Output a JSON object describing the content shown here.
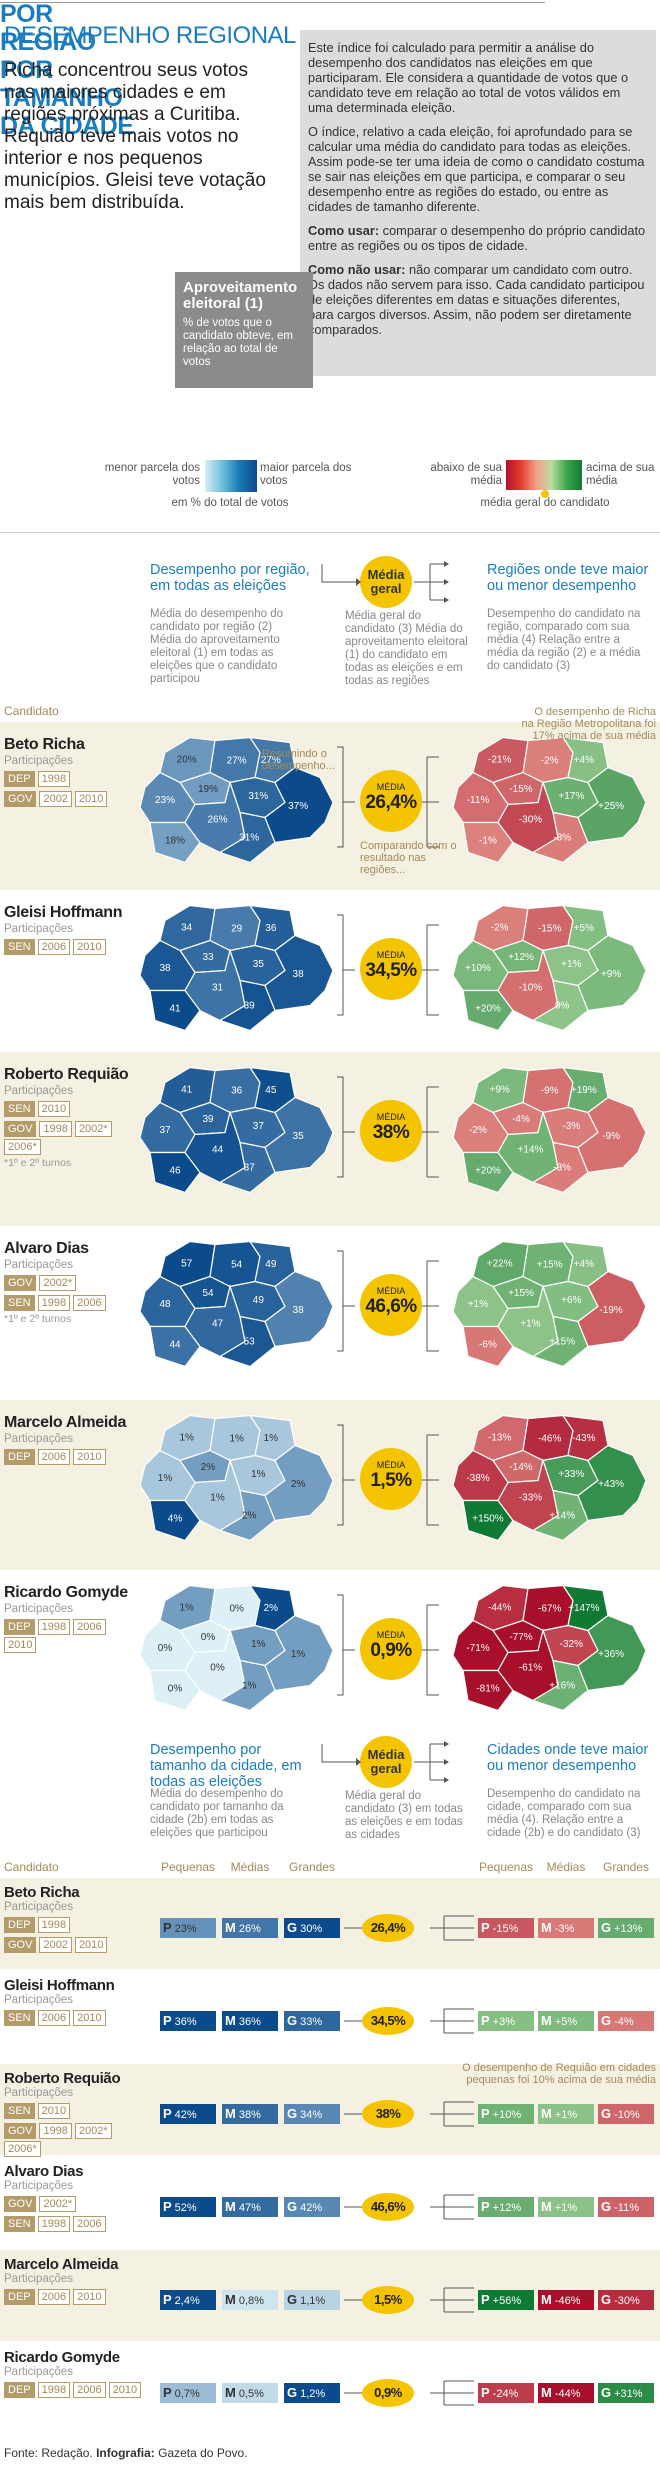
{
  "header": {
    "title": "DESEMPENHO REGIONAL",
    "lead": "Richa concentrou seus votos nas maiores cidades e em regiões próximas a Curitiba. Requião teve mais votos no interior e nos pequenos municípios. Gleisi teve votação mais bem distribuída.",
    "info": {
      "paragraphs": [
        "Este índice foi calculado para permitir a análise do desempenho dos candidatos nas eleições em que participaram. Ele considera a quantidade de votos que o candidato teve em relação ao total de votos válidos em uma determinada eleição.",
        "O índice, relativo a cada eleição, foi aprofundado para se calcular uma média do candidato para todas as eleições. Assim pode-se ter uma ideia de como o candidato costuma se sair nas eleições em que participa, e comparar o seu desempenho entre as regiões do estado, ou entre as cidades de tamanho diferente."
      ],
      "use_label": "Como usar:",
      "use_text": "comparar o desempenho do próprio candidato entre as regiões ou os tipos de cidade.",
      "nouse_label": "Como não usar:",
      "nouse_text": "não comparar um candidato com outro. Os dados não servem para isso. Cada candidato participou de eleições diferentes em datas e situações diferentes, para cargos diversos. Assim, não podem ser diretamente comparados."
    },
    "definition": {
      "title": "Aproveitamento eleitoral (1)",
      "text": "% de votos que o candidato obteve, em relação ao total de votos"
    }
  },
  "legend": {
    "low": "menor parcela dos votos",
    "high": "maior parcela dos votos",
    "unit": "em % do total de votos",
    "below": "abaixo de sua média",
    "above": "acima de sua média",
    "average": "média geral do candidato"
  },
  "by_region": {
    "title": "POR REGIÃO",
    "col1_head": "Desempenho por região, em todas as eleições",
    "col1_desc": "Média do desempenho do candidato por região (2) Média do aproveitamento eleitoral (1) em todas as eleições que o candidato participou",
    "col2_head": "Média geral",
    "col2_desc": "Média geral do candidato (3) Média do aproveitamento eleitoral (1) do candidato em todas as eleições e em todas as regiões",
    "col3_head": "Regiões onde teve maior ou menor desempenho",
    "col3_desc": "Desempenho do candidato na região, comparado com sua média (4) Relação entre a média da região (2) e a média do candidato (3)",
    "candidate_label": "Candidato",
    "summary_note": "Resumindo o desempenho...",
    "compare_note": "Comparando com o resultado nas regiões...",
    "richa_note": "O desempenho de Richa na Região Metropolitana foi 17% acima de sua média"
  },
  "participations_label": "Participações",
  "circle_label": "MÉDIA",
  "candidates": [
    {
      "name": "Beto Richa",
      "elections": [
        {
          "office": "DEP",
          "years": [
            "1998"
          ]
        },
        {
          "office": "GOV",
          "years": [
            "2002",
            "2010"
          ]
        }
      ],
      "region_values": [
        "20%",
        "27%",
        "27%",
        "19%",
        "23%",
        "31%",
        "18%",
        "26%",
        "31%",
        "37%"
      ],
      "region_diffs": [
        "-21%",
        "-2%",
        "+4%",
        "-15%",
        "-11%",
        "+17%",
        "-1%",
        "-30%",
        "-3%",
        "+25%"
      ],
      "average": "26,4%",
      "size_values": [
        "23%",
        "26%",
        "30%"
      ],
      "size_diffs": [
        "-15%",
        "-3%",
        "+13%"
      ]
    },
    {
      "name": "Gleisi Hoffmann",
      "elections": [
        {
          "office": "SEN",
          "years": [
            "2006",
            "2010"
          ]
        }
      ],
      "region_values": [
        "34",
        "29",
        "36",
        "33",
        "38",
        "35",
        "41",
        "31",
        "39",
        "38"
      ],
      "region_diffs": [
        "-2%",
        "-15%",
        "+5%",
        "+12%",
        "+10%",
        "+1%",
        "+20%",
        "-10%",
        "0%",
        "+9%"
      ],
      "average": "34,5%",
      "size_values": [
        "36%",
        "36%",
        "33%"
      ],
      "size_diffs": [
        "+3%",
        "+5%",
        "-4%"
      ]
    },
    {
      "name": "Roberto Requião",
      "elections": [
        {
          "office": "SEN",
          "years": [
            "2010"
          ]
        },
        {
          "office": "GOV",
          "years": [
            "1998",
            "2002*",
            "2006*"
          ]
        }
      ],
      "note": "*1º e 2º turnos",
      "region_values": [
        "41",
        "36",
        "45",
        "39",
        "37",
        "37",
        "46",
        "44",
        "37",
        "35"
      ],
      "region_diffs": [
        "+9%",
        "-9%",
        "+19%",
        "-4%",
        "-2%",
        "-3%",
        "+20%",
        "+14%",
        "-3%",
        "-9%"
      ],
      "average": "38%",
      "size_values": [
        "42%",
        "38%",
        "34%"
      ],
      "size_diffs": [
        "+10%",
        "+1%",
        "-10%"
      ]
    },
    {
      "name": "Alvaro Dias",
      "elections": [
        {
          "office": "GOV",
          "years": [
            "2002*"
          ]
        },
        {
          "office": "SEN",
          "years": [
            "1998",
            "2006"
          ]
        }
      ],
      "note": "*1º e 2º turnos",
      "region_values": [
        "57",
        "54",
        "49",
        "54",
        "48",
        "49",
        "44",
        "47",
        "53",
        "38"
      ],
      "region_diffs": [
        "+22%",
        "+15%",
        "+4%",
        "+15%",
        "+1%",
        "+6%",
        "-6%",
        "+1%",
        "+15%",
        "-19%"
      ],
      "average": "46,6%",
      "size_values": [
        "52%",
        "47%",
        "42%"
      ],
      "size_diffs": [
        "+12%",
        "+1%",
        "-11%"
      ]
    },
    {
      "name": "Marcelo Almeida",
      "elections": [
        {
          "office": "DEP",
          "years": [
            "2006",
            "2010"
          ]
        }
      ],
      "region_values": [
        "1%",
        "1%",
        "1%",
        "2%",
        "1%",
        "1%",
        "4%",
        "1%",
        "2%",
        "2%"
      ],
      "region_diffs": [
        "-13%",
        "-46%",
        "-43%",
        "-14%",
        "-38%",
        "+33%",
        "+150%",
        "-33%",
        "+14%",
        "+43%"
      ],
      "average": "1,5%",
      "size_values": [
        "2,4%",
        "0,8%",
        "1,1%"
      ],
      "size_diffs": [
        "+56%",
        "-46%",
        "-30%"
      ]
    },
    {
      "name": "Ricardo Gomyde",
      "elections": [
        {
          "office": "DEP",
          "years": [
            "1998",
            "2006",
            "2010"
          ]
        }
      ],
      "region_values": [
        "1%",
        "0%",
        "2%",
        "0%",
        "0%",
        "1%",
        "0%",
        "0%",
        "1%",
        "1%"
      ],
      "region_diffs": [
        "-44%",
        "-67%",
        "+147%",
        "-77%",
        "-71%",
        "-32%",
        "-81%",
        "-61%",
        "+16%",
        "+36%"
      ],
      "average": "0,9%",
      "size_values": [
        "0,7%",
        "0,5%",
        "1,2%"
      ],
      "size_diffs": [
        "-24%",
        "-44%",
        "+31%"
      ]
    }
  ],
  "by_size": {
    "title": "POR TAMANHO DA CIDADE",
    "col1_head": "Desempenho por tamanho da cidade, em todas as eleições",
    "col1_desc": "Média do desempenho do candidato por tamanho da cidade (2b) em todas as eleições que participou",
    "col2_head": "Média geral",
    "col2_desc": "Média geral do candidato (3) em todas as eleições e em todas as cidades",
    "col3_head": "Cidades onde teve maior ou menor desempenho",
    "col3_desc": "Desempenho do candidato na cidade, comparado com sua média (4). Relação entre a cidade (2b) e do candidato (3)",
    "candidate_label": "Candidato",
    "size_headers": [
      "Pequenas",
      "Médias",
      "Grandes"
    ],
    "letters": [
      "P",
      "M",
      "G"
    ],
    "requiao_note": "O desempenho de Requião em cidades pequenas foi 10% acima de sua média"
  },
  "footer": {
    "source_label": "Fonte:",
    "source": "Redação.",
    "infographic_label": "Infografia:",
    "infographic": "Gazeta do Povo."
  }
}
